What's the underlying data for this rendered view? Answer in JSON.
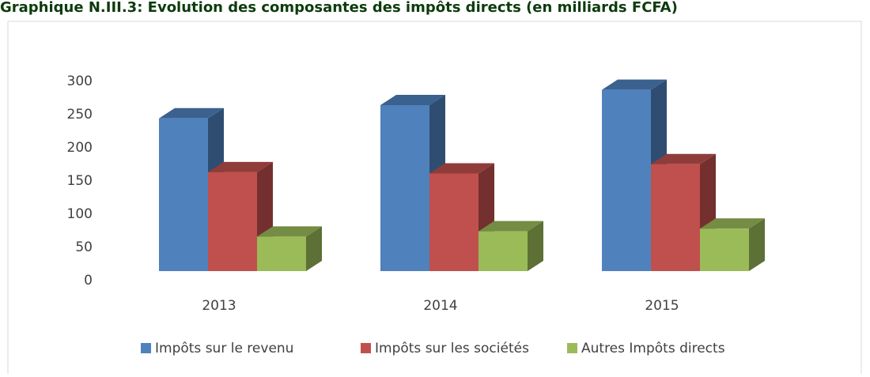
{
  "chart_data": {
    "type": "bar3d",
    "title": "Graphique N.III.3: Evolution des composantes des impôts directs (en milliards FCFA)",
    "categories": [
      "2013",
      "2014",
      "2015"
    ],
    "series": [
      {
        "name": "Impôts sur le revenu",
        "color": "#4f81bd",
        "values": [
          230,
          250,
          273
        ]
      },
      {
        "name": "Impôts sur les sociétés",
        "color": "#c0504d",
        "values": [
          149,
          147,
          161
        ]
      },
      {
        "name": "Autres Impôts directs",
        "color": "#9bbb59",
        "values": [
          52,
          60,
          64
        ]
      }
    ],
    "ylim": [
      0,
      300
    ],
    "yticks": [
      0,
      50,
      100,
      150,
      200,
      250,
      300
    ],
    "legend": "bottom"
  }
}
